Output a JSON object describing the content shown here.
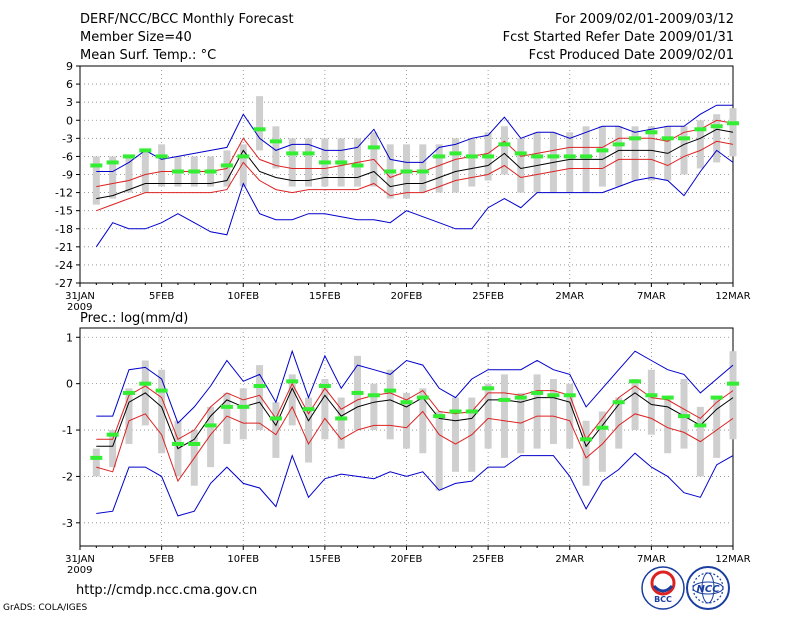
{
  "header": {
    "title": "DERF/NCC/BCC Monthly Forecast",
    "member_size": "Member Size=40",
    "variable": "Mean Surf. Temp.: °C",
    "period": "For 2009/02/01-2009/03/12",
    "started": "Fcst Started Refer Date 2009/01/31",
    "produced": "Fcst Produced Date 2009/02/01"
  },
  "footer": {
    "url": "http://cmdp.ncc.cma.gov.cn",
    "grads": "GrADS: COLA/IGES",
    "logo_bcc": "BCC",
    "logo_ncc": "NCC"
  },
  "colors": {
    "box": "#cfcfcf",
    "obs": "#33ee33",
    "mean": "#000000",
    "spread": "#dd2222",
    "envelope": "#0000cc",
    "grid": "#888888"
  },
  "chart_data": [
    {
      "type": "line",
      "title": "Mean Surf. Temp.: °C",
      "xlabel": "",
      "ylabel": "°C",
      "ylim": [
        -27,
        9
      ],
      "yticks": [
        9,
        6,
        3,
        0,
        -3,
        -6,
        -9,
        -12,
        -15,
        -18,
        -21,
        -24,
        -27
      ],
      "x_tick_labels": [
        {
          "day": 0,
          "label": "31JAN",
          "sub": "2009"
        },
        {
          "day": 5,
          "label": "5FEB"
        },
        {
          "day": 10,
          "label": "10FEB"
        },
        {
          "day": 15,
          "label": "15FEB"
        },
        {
          "day": 20,
          "label": "20FEB"
        },
        {
          "day": 25,
          "label": "25FEB"
        },
        {
          "day": 30,
          "label": "2MAR"
        },
        {
          "day": 35,
          "label": "7MAR"
        },
        {
          "day": 40,
          "label": "12MAR"
        }
      ],
      "days": [
        1,
        2,
        3,
        4,
        5,
        6,
        7,
        8,
        9,
        10,
        11,
        12,
        13,
        14,
        15,
        16,
        17,
        18,
        19,
        20,
        21,
        22,
        23,
        24,
        25,
        26,
        27,
        28,
        29,
        30,
        31,
        32,
        33,
        34,
        35,
        36,
        37,
        38,
        39,
        40
      ],
      "series": [
        {
          "name": "box_top",
          "values": [
            -6,
            -6,
            -6,
            -5,
            -4,
            -6,
            -6,
            -6,
            -5,
            -4,
            4,
            -1,
            -3,
            -3,
            -3,
            -3,
            -3,
            -2,
            -4,
            -4,
            -4,
            -4,
            -3,
            -3,
            -2,
            -1,
            -3,
            -2,
            -2,
            -2,
            -1,
            -1,
            -1,
            -1,
            -1,
            -1,
            -1,
            0,
            1,
            2
          ]
        },
        {
          "name": "box_bottom",
          "values": [
            -14,
            -13,
            -12,
            -12,
            -11,
            -11,
            -11,
            -11,
            -11,
            -11,
            -5,
            -8,
            -11,
            -11,
            -11,
            -11,
            -11,
            -11,
            -13,
            -13,
            -12,
            -12,
            -12,
            -11,
            -10,
            -9,
            -12,
            -12,
            -12,
            -12,
            -12,
            -11,
            -11,
            -10,
            -10,
            -10,
            -9,
            -8,
            -7,
            -6
          ]
        },
        {
          "name": "obs",
          "values": [
            -7.5,
            -7,
            -6,
            -5,
            -6,
            -8.5,
            -8.5,
            -8.5,
            -7.5,
            -6,
            -1.5,
            -3.5,
            -5.5,
            -5.5,
            -7,
            -7,
            -7.5,
            -4.5,
            -8.5,
            -8.5,
            -8.5,
            -6,
            -5.5,
            -6,
            -6,
            -4,
            -5.5,
            -6,
            -6,
            -6,
            -6,
            -5,
            -4,
            -3,
            -2,
            -3,
            -3,
            -1.5,
            -1,
            -0.5
          ]
        },
        {
          "name": "env_max",
          "values": [
            -8.5,
            -8.5,
            -7,
            -5,
            -6.5,
            -6,
            -5.5,
            -5,
            -4.5,
            1,
            -3,
            -5,
            -4,
            -4,
            -5,
            -5,
            -4.5,
            -1.5,
            -6.5,
            -7,
            -7,
            -4.5,
            -4,
            -3,
            -2.5,
            0.5,
            -3,
            -2,
            -2,
            -3,
            -2,
            -1,
            -1,
            -2,
            -1.5,
            -1,
            -1,
            1,
            2.5,
            2.5
          ]
        },
        {
          "name": "spread_high",
          "values": [
            -11,
            -10.5,
            -10,
            -9,
            -8.5,
            -8.5,
            -8.5,
            -8.5,
            -8,
            -3,
            -6.5,
            -7.5,
            -8,
            -8,
            -8,
            -7.5,
            -7,
            -6.5,
            -9.5,
            -8.5,
            -8.5,
            -7.5,
            -6.5,
            -6,
            -5.5,
            -3.5,
            -6,
            -5.5,
            -5,
            -4.5,
            -4.5,
            -4.5,
            -3,
            -3,
            -3,
            -3.5,
            -2,
            -1.5,
            0,
            -0.5
          ]
        },
        {
          "name": "mean",
          "values": [
            -13,
            -12.5,
            -11.5,
            -10.5,
            -10.5,
            -10.5,
            -10.5,
            -10.5,
            -10,
            -5,
            -8.5,
            -9.5,
            -10,
            -10,
            -9.5,
            -9.5,
            -9.5,
            -8.5,
            -11,
            -10.5,
            -10.5,
            -9.5,
            -8.5,
            -8,
            -7.5,
            -5.5,
            -8,
            -7.5,
            -7,
            -6.5,
            -6.5,
            -6.5,
            -5,
            -5,
            -5,
            -5.5,
            -4,
            -3,
            -1.5,
            -2
          ]
        },
        {
          "name": "spread_low",
          "values": [
            -15,
            -14,
            -13,
            -12,
            -12,
            -12,
            -12,
            -12,
            -11.5,
            -7,
            -10,
            -11.5,
            -12,
            -11.5,
            -11.5,
            -11.5,
            -11.5,
            -10.5,
            -12.5,
            -12,
            -12,
            -11,
            -10,
            -9.5,
            -9,
            -7.5,
            -9.5,
            -9,
            -8.5,
            -8,
            -8,
            -8,
            -6.5,
            -6.5,
            -6.5,
            -7.5,
            -6,
            -5,
            -3.5,
            -4
          ]
        },
        {
          "name": "env_min",
          "values": [
            -21,
            -17,
            -18,
            -18,
            -17,
            -15.5,
            -17,
            -18.5,
            -19,
            -10.5,
            -15.5,
            -16.5,
            -16.5,
            -15.5,
            -15.5,
            -16,
            -16.5,
            -16.5,
            -17,
            -15,
            -16,
            -17,
            -18,
            -18,
            -14.5,
            -13,
            -14.5,
            -12,
            -12,
            -12,
            -12,
            -12,
            -11,
            -10,
            -9.5,
            -10,
            -12.5,
            -8.5,
            -5,
            -7
          ]
        }
      ]
    },
    {
      "type": "line",
      "title": "Prec.: log(mm/d)",
      "xlabel": "",
      "ylabel": "log(mm/d)",
      "ylim": [
        -3.5,
        1.2
      ],
      "yticks": [
        1,
        0,
        -1,
        -2,
        -3
      ],
      "x_tick_labels": [
        {
          "day": 0,
          "label": "31JAN",
          "sub": "2009"
        },
        {
          "day": 5,
          "label": "5FEB"
        },
        {
          "day": 10,
          "label": "10FEB"
        },
        {
          "day": 15,
          "label": "15FEB"
        },
        {
          "day": 20,
          "label": "20FEB"
        },
        {
          "day": 25,
          "label": "25FEB"
        },
        {
          "day": 30,
          "label": "2MAR"
        },
        {
          "day": 35,
          "label": "7MAR"
        },
        {
          "day": 40,
          "label": "12MAR"
        }
      ],
      "days": [
        1,
        2,
        3,
        4,
        5,
        6,
        7,
        8,
        9,
        10,
        11,
        12,
        13,
        14,
        15,
        16,
        17,
        18,
        19,
        20,
        21,
        22,
        23,
        24,
        25,
        26,
        27,
        28,
        29,
        30,
        31,
        32,
        33,
        34,
        35,
        36,
        37,
        38,
        39,
        40
      ],
      "series": [
        {
          "name": "box_top",
          "values": [
            -1.4,
            -1.0,
            -0.1,
            0.5,
            0.3,
            -0.8,
            -1.0,
            -0.5,
            -0.2,
            -0.1,
            0.4,
            -0.4,
            0.2,
            -0.3,
            0.1,
            -0.3,
            0.6,
            0,
            0.3,
            -0.2,
            -0.1,
            -0.6,
            -0.3,
            -0.3,
            0,
            0.2,
            -0.2,
            0.2,
            0.1,
            0,
            -0.8,
            -0.6,
            -0.3,
            0.1,
            0.3,
            -0.3,
            0.1,
            -0.5,
            -0.3,
            0.7
          ]
        },
        {
          "name": "box_bottom",
          "values": [
            -2.0,
            -1.8,
            -1.3,
            -0.9,
            -1.5,
            -2.0,
            -2.2,
            -1.8,
            -1.3,
            -1.2,
            -1.0,
            -1.6,
            -0.9,
            -1.7,
            -1.2,
            -1.4,
            -1.0,
            -1.0,
            -1.2,
            -1.4,
            -1.5,
            -2.3,
            -1.9,
            -1.9,
            -1.4,
            -1.6,
            -1.5,
            -1.4,
            -1.3,
            -1.4,
            -2.2,
            -1.9,
            -1.4,
            -1.0,
            -1.1,
            -1.5,
            -1.4,
            -2.0,
            -1.6,
            -1.2
          ]
        },
        {
          "name": "obs",
          "values": [
            -1.6,
            -1.1,
            -0.2,
            0,
            -0.15,
            -1.3,
            -1.3,
            -0.9,
            -0.5,
            -0.5,
            -0.05,
            -0.75,
            0.05,
            -0.55,
            -0.05,
            -0.75,
            -0.2,
            -0.25,
            -0.15,
            -0.4,
            -0.3,
            -0.7,
            -0.6,
            -0.6,
            -0.1,
            -0.35,
            -0.3,
            -0.2,
            -0.25,
            -0.25,
            -1.2,
            -0.95,
            -0.4,
            0.05,
            -0.25,
            -0.3,
            -0.7,
            -0.9,
            -0.3,
            0
          ]
        },
        {
          "name": "env_max",
          "values": [
            -0.7,
            -0.7,
            0.3,
            0.35,
            0.1,
            -0.85,
            -0.5,
            -0.05,
            0.5,
            0.05,
            0.2,
            -0.4,
            0.7,
            -0.3,
            0.6,
            -0.1,
            0.4,
            0.3,
            0.2,
            0.5,
            0.4,
            -0.1,
            -0.3,
            0.1,
            0.3,
            0.3,
            0.3,
            0.5,
            0.3,
            0.2,
            -0.5,
            -0.1,
            0.3,
            0.7,
            0.5,
            0.3,
            0.2,
            -0.2,
            0.1,
            0.4
          ]
        },
        {
          "name": "mean",
          "values": [
            -1.35,
            -1.35,
            -0.4,
            -0.2,
            -0.5,
            -1.4,
            -1.2,
            -0.7,
            -0.35,
            -0.5,
            -0.4,
            -0.9,
            -0.1,
            -0.8,
            -0.25,
            -0.7,
            -0.5,
            -0.4,
            -0.35,
            -0.5,
            -0.3,
            -0.75,
            -0.8,
            -0.75,
            -0.35,
            -0.35,
            -0.4,
            -0.3,
            -0.3,
            -0.4,
            -1.35,
            -0.9,
            -0.45,
            -0.2,
            -0.45,
            -0.5,
            -0.7,
            -0.9,
            -0.55,
            -0.3
          ]
        },
        {
          "name": "spread_high",
          "values": [
            -1.2,
            -1.2,
            -0.25,
            -0.05,
            -0.3,
            -1.2,
            -1.0,
            -0.5,
            -0.2,
            -0.35,
            -0.25,
            -0.75,
            0,
            -0.65,
            -0.1,
            -0.55,
            -0.35,
            -0.25,
            -0.2,
            -0.35,
            -0.15,
            -0.6,
            -0.65,
            -0.6,
            -0.2,
            -0.2,
            -0.25,
            -0.15,
            -0.15,
            -0.25,
            -1.2,
            -0.75,
            -0.3,
            -0.05,
            -0.3,
            -0.35,
            -0.55,
            -0.75,
            -0.4,
            -0.15
          ]
        },
        {
          "name": "spread_low",
          "values": [
            -1.8,
            -1.9,
            -0.8,
            -0.65,
            -1.1,
            -2.1,
            -1.6,
            -1.1,
            -0.7,
            -0.85,
            -0.85,
            -1.1,
            -0.5,
            -1.3,
            -0.75,
            -1.2,
            -1.0,
            -0.9,
            -0.9,
            -0.95,
            -0.6,
            -1.1,
            -1.3,
            -1.1,
            -0.75,
            -0.8,
            -0.85,
            -0.7,
            -0.7,
            -0.8,
            -1.6,
            -1.3,
            -0.9,
            -0.65,
            -0.75,
            -0.95,
            -1.05,
            -1.25,
            -1.0,
            -0.75
          ]
        },
        {
          "name": "env_min",
          "values": [
            -2.8,
            -2.75,
            -1.8,
            -1.8,
            -2.0,
            -2.85,
            -2.75,
            -2.15,
            -1.8,
            -2.15,
            -2.25,
            -2.65,
            -1.55,
            -2.45,
            -2.05,
            -1.95,
            -2.0,
            -2.05,
            -1.9,
            -2.0,
            -1.9,
            -2.3,
            -2.15,
            -2.1,
            -1.8,
            -1.8,
            -1.55,
            -1.55,
            -1.55,
            -2.0,
            -2.7,
            -2.1,
            -1.85,
            -1.5,
            -1.8,
            -2.0,
            -2.35,
            -2.45,
            -1.75,
            -1.55
          ]
        }
      ]
    }
  ],
  "sub_labels": {
    "top_year": "2009",
    "bottom_year": "2009",
    "bottom_title": "Prec.: log(mm/d)"
  }
}
